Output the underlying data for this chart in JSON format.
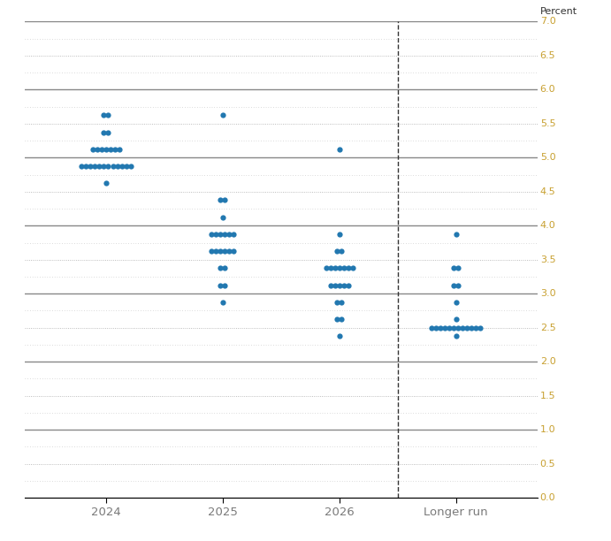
{
  "x_categories": [
    "2024",
    "2025",
    "2026",
    "Longer run"
  ],
  "x_positions": [
    1,
    2,
    3,
    4
  ],
  "ylim": [
    0.0,
    7.0
  ],
  "yticks_major": [
    0.0,
    0.5,
    1.0,
    1.5,
    2.0,
    2.5,
    3.0,
    3.5,
    4.0,
    4.5,
    5.0,
    5.5,
    6.0,
    6.5,
    7.0
  ],
  "yticks_all": [
    0.0,
    0.25,
    0.5,
    0.75,
    1.0,
    1.25,
    1.5,
    1.75,
    2.0,
    2.25,
    2.5,
    2.75,
    3.0,
    3.25,
    3.5,
    3.75,
    4.0,
    4.25,
    4.5,
    4.75,
    5.0,
    5.25,
    5.5,
    5.75,
    6.0,
    6.25,
    6.5,
    6.75,
    7.0
  ],
  "dot_color": "#2278b0",
  "dot_markersize": 4.5,
  "grid_solid_color": "#888888",
  "grid_dotted_color": "#aaaaaa",
  "grid_dash_color": "#bbbbbb",
  "background_color": "#ffffff",
  "ylabel_color": "#c8a030",
  "xlabel_color": "#7a7a7a",
  "percent_label_color": "#333333",
  "dashed_line_color": "#333333",
  "spread": 0.038,
  "dots": {
    "2024": {
      "5.625": 2,
      "5.375": 2,
      "5.125": 7,
      "4.875": 12,
      "4.625": 1
    },
    "2025": {
      "5.625": 1,
      "4.375": 2,
      "4.125": 1,
      "3.875": 6,
      "3.625": 6,
      "3.375": 2,
      "3.125": 2,
      "2.875": 1
    },
    "2026": {
      "5.125": 1,
      "3.875": 1,
      "3.625": 2,
      "3.375": 7,
      "3.125": 5,
      "2.875": 2,
      "2.625": 2,
      "2.375": 1
    },
    "Longer run": {
      "3.875": 1,
      "3.375": 2,
      "3.125": 2,
      "2.875": 1,
      "2.625": 1,
      "2.5": 12,
      "2.375": 1
    }
  },
  "figsize": [
    6.91,
    6.12
  ],
  "dpi": 100
}
